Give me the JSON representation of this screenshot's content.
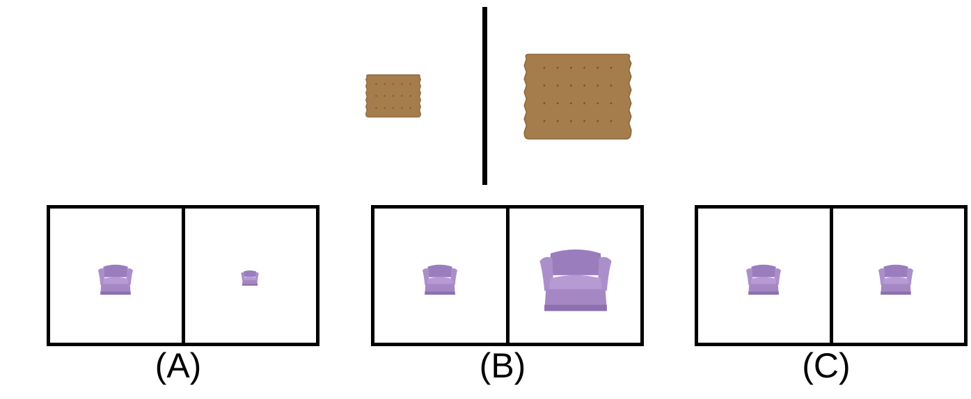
{
  "example": {
    "left_object": "cracker-small",
    "right_object": "cracker-large"
  },
  "options": [
    {
      "label": "(A)",
      "left": "chair-medium",
      "right": "chair-small"
    },
    {
      "label": "(B)",
      "left": "chair-medium",
      "right": "chair-large"
    },
    {
      "label": "(C)",
      "left": "chair-medium",
      "right": "chair-medium"
    }
  ],
  "colors": {
    "cracker": "#a57c4b",
    "cracker_edge": "#8d673b",
    "chair": "#a78bc6",
    "chair_shadow": "#8c70ad"
  }
}
